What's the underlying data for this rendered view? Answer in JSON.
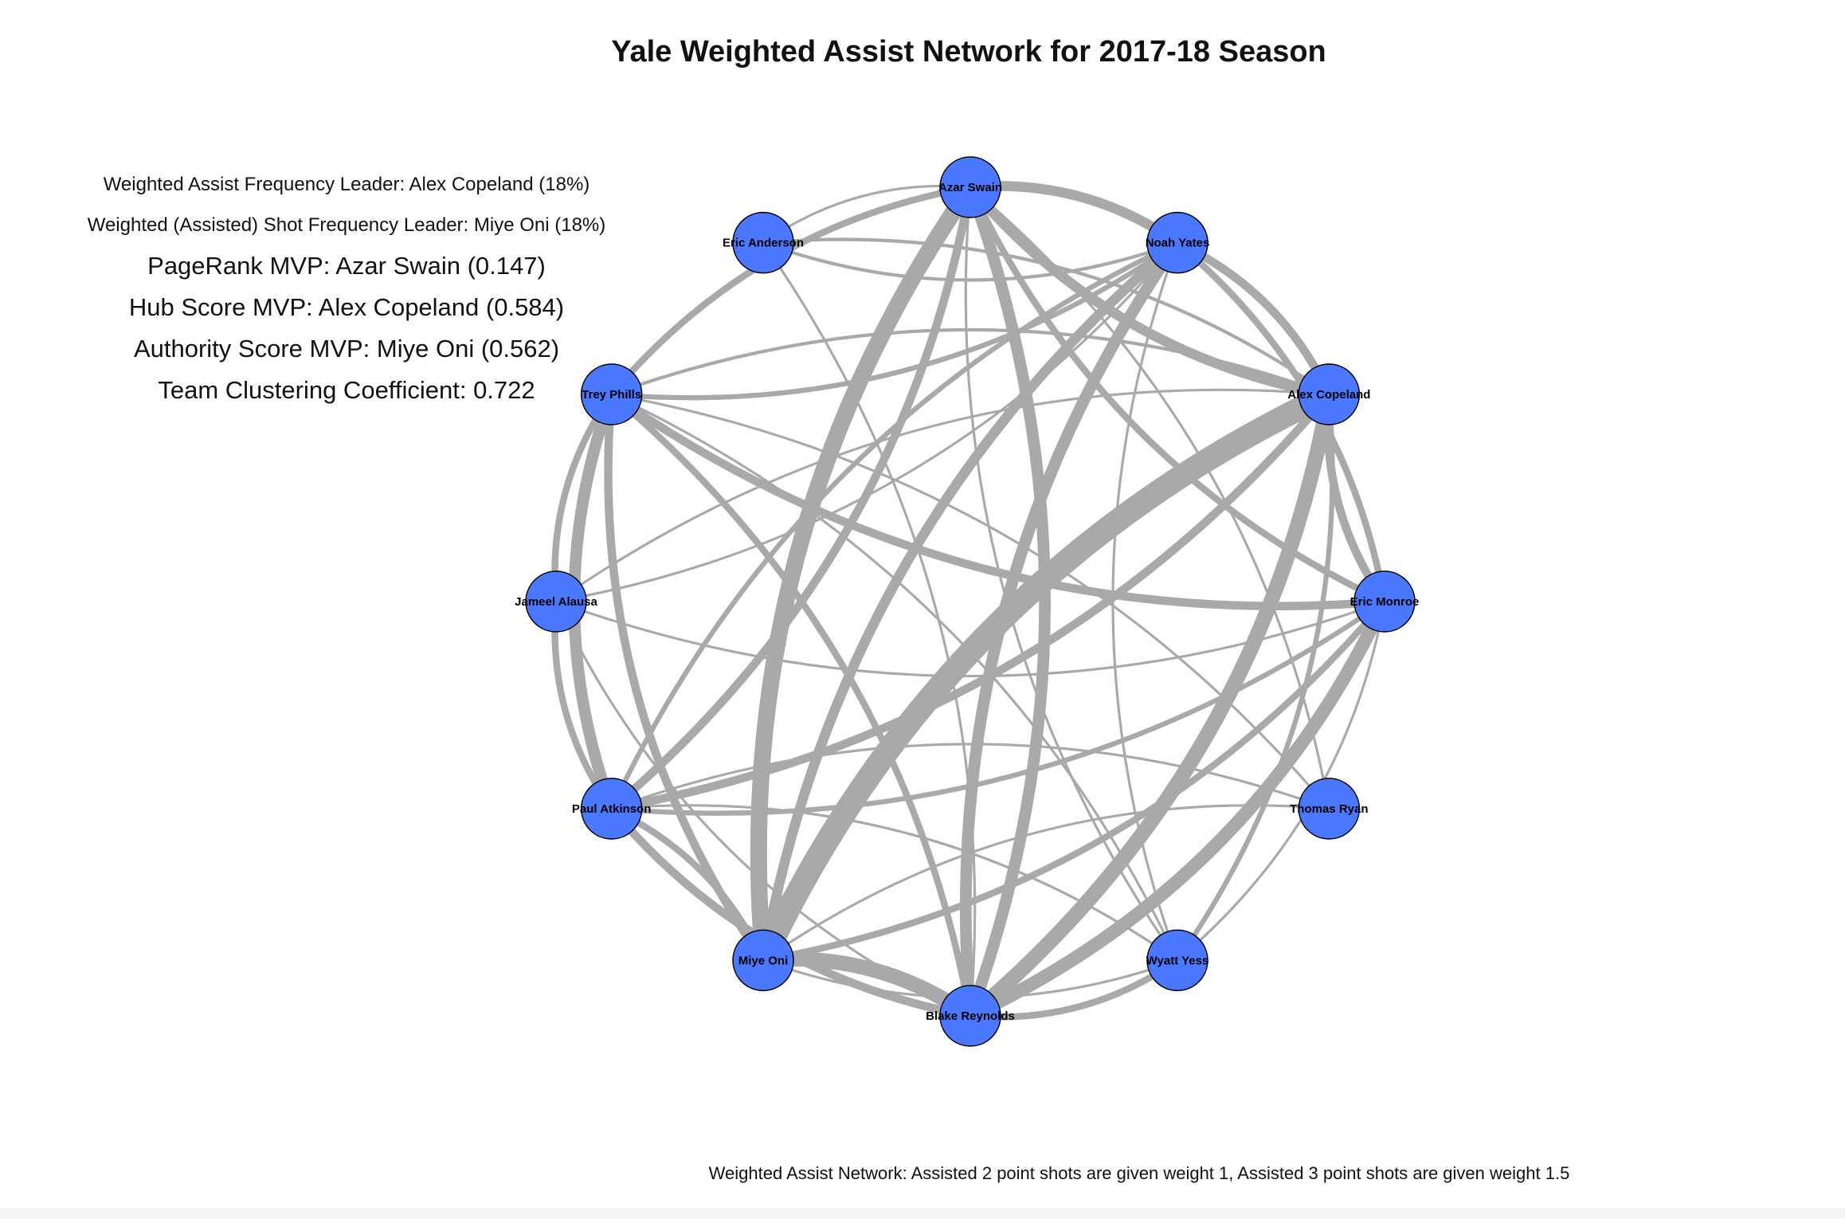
{
  "title": "Yale Weighted Assist Network for 2017-18 Season",
  "stats": [
    "Weighted Assist Frequency Leader: Alex Copeland (18%)",
    "Weighted (Assisted) Shot Frequency Leader: Miye Oni (18%)",
    "PageRank MVP: Azar Swain (0.147)",
    "Hub Score MVP: Alex Copeland (0.584)",
    "Authority Score MVP: Miye Oni (0.562)",
    "Team Clustering Coefficient: 0.722"
  ],
  "caption": "Weighted Assist Network: Assisted 2 point shots are given weight 1, Assisted 3 point shots are given weight 1.5",
  "colors": {
    "node": "#4a78ff",
    "edge": "#a9a9a9",
    "node_border": "#000000"
  },
  "players": [
    "Azar Swain",
    "Noah Yates",
    "Alex Copeland",
    "Eric Monroe",
    "Thomas Ryan",
    "Wyatt Yess",
    "Blake Reynolds",
    "Miye Oni",
    "Paul Atkinson",
    "Jameel Alausa",
    "Trey Phills",
    "Eric Anderson"
  ],
  "edges": [
    {
      "from": "Alex Copeland",
      "to": "Miye Oni",
      "weight": 14
    },
    {
      "from": "Alex Copeland",
      "to": "Blake Reynolds",
      "weight": 9
    },
    {
      "from": "Azar Swain",
      "to": "Miye Oni",
      "weight": 10
    },
    {
      "from": "Miye Oni",
      "to": "Blake Reynolds",
      "weight": 9
    },
    {
      "from": "Noah Yates",
      "to": "Blake Reynolds",
      "weight": 7
    },
    {
      "from": "Eric Monroe",
      "to": "Blake Reynolds",
      "weight": 8
    },
    {
      "from": "Trey Phills",
      "to": "Paul Atkinson",
      "weight": 7
    },
    {
      "from": "Azar Swain",
      "to": "Blake Reynolds",
      "weight": 7
    },
    {
      "from": "Azar Swain",
      "to": "Alex Copeland",
      "weight": 6
    },
    {
      "from": "Azar Swain",
      "to": "Noah Yates",
      "weight": 6
    },
    {
      "from": "Trey Phills",
      "to": "Eric Monroe",
      "weight": 5
    },
    {
      "from": "Miye Oni",
      "to": "Noah Yates",
      "weight": 6
    },
    {
      "from": "Paul Atkinson",
      "to": "Alex Copeland",
      "weight": 5
    },
    {
      "from": "Azar Swain",
      "to": "Paul Atkinson",
      "weight": 5
    },
    {
      "from": "Trey Phills",
      "to": "Miye Oni",
      "weight": 5
    },
    {
      "from": "Noah Yates",
      "to": "Alex Copeland",
      "weight": 5
    },
    {
      "from": "Alex Copeland",
      "to": "Eric Monroe",
      "weight": 5
    },
    {
      "from": "Eric Monroe",
      "to": "Miye Oni",
      "weight": 4
    },
    {
      "from": "Paul Atkinson",
      "to": "Blake Reynolds",
      "weight": 5
    },
    {
      "from": "Trey Phills",
      "to": "Azar Swain",
      "weight": 4
    },
    {
      "from": "Miye Oni",
      "to": "Paul Atkinson",
      "weight": 4
    },
    {
      "from": "Jameel Alausa",
      "to": "Trey Phills",
      "weight": 4
    },
    {
      "from": "Jameel Alausa",
      "to": "Paul Atkinson",
      "weight": 4
    },
    {
      "from": "Noah Yates",
      "to": "Eric Monroe",
      "weight": 4
    },
    {
      "from": "Azar Swain",
      "to": "Eric Monroe",
      "weight": 4
    },
    {
      "from": "Trey Phills",
      "to": "Blake Reynolds",
      "weight": 4
    },
    {
      "from": "Blake Reynolds",
      "to": "Wyatt Yess",
      "weight": 4
    },
    {
      "from": "Alex Copeland",
      "to": "Wyatt Yess",
      "weight": 3
    },
    {
      "from": "Trey Phills",
      "to": "Noah Yates",
      "weight": 3
    },
    {
      "from": "Eric Monroe",
      "to": "Paul Atkinson",
      "weight": 3
    },
    {
      "from": "Noah Yates",
      "to": "Paul Atkinson",
      "weight": 3
    },
    {
      "from": "Trey Phills",
      "to": "Alex Copeland",
      "weight": 2
    },
    {
      "from": "Eric Anderson",
      "to": "Noah Yates",
      "weight": 2
    },
    {
      "from": "Eric Anderson",
      "to": "Alex Copeland",
      "weight": 2
    },
    {
      "from": "Jameel Alausa",
      "to": "Eric Monroe",
      "weight": 1.5
    },
    {
      "from": "Paul Atkinson",
      "to": "Thomas Ryan",
      "weight": 1.5
    },
    {
      "from": "Azar Swain",
      "to": "Eric Anderson",
      "weight": 1.5
    },
    {
      "from": "Azar Swain",
      "to": "Thomas Ryan",
      "weight": 1.5
    },
    {
      "from": "Azar Swain",
      "to": "Wyatt Yess",
      "weight": 1.5
    },
    {
      "from": "Noah Yates",
      "to": "Jameel Alausa",
      "weight": 1.5
    },
    {
      "from": "Noah Yates",
      "to": "Wyatt Yess",
      "weight": 1.5
    },
    {
      "from": "Eric Monroe",
      "to": "Wyatt Yess",
      "weight": 1.5
    },
    {
      "from": "Thomas Ryan",
      "to": "Miye Oni",
      "weight": 1.5
    },
    {
      "from": "Trey Phills",
      "to": "Wyatt Yess",
      "weight": 1.5
    },
    {
      "from": "Jameel Alausa",
      "to": "Blake Reynolds",
      "weight": 1.5
    },
    {
      "from": "Eric Anderson",
      "to": "Blake Reynolds",
      "weight": 1.5
    },
    {
      "from": "Alex Copeland",
      "to": "Jameel Alausa",
      "weight": 1.5
    },
    {
      "from": "Trey Phills",
      "to": "Thomas Ryan",
      "weight": 1.5
    },
    {
      "from": "Miye Oni",
      "to": "Wyatt Yess",
      "weight": 1.5
    },
    {
      "from": "Paul Atkinson",
      "to": "Wyatt Yess",
      "weight": 1.5
    }
  ]
}
